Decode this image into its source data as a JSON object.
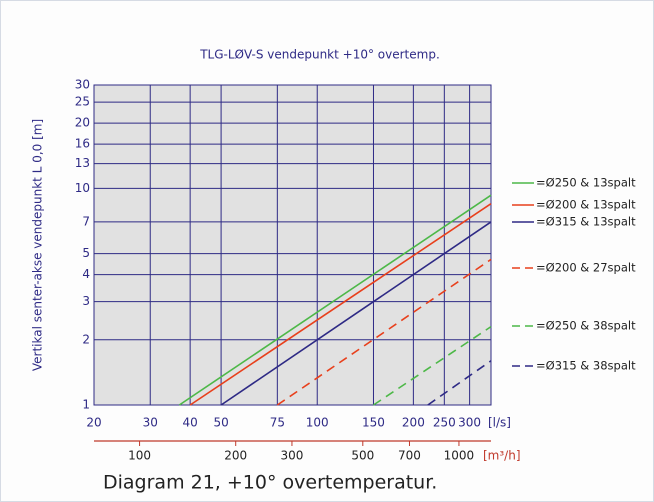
{
  "chart_data": {
    "type": "line",
    "title": "TLG-LØV-S vendepunkt +10° overtemp.",
    "y_label": "Vertikal senter-akse vendepunkt L 0,0 [m]",
    "x_unit": "[l/s]",
    "x2_unit": "[m³/h]",
    "caption": "Diagram 21, +10° overtemperatur.",
    "log_x": true,
    "log_y": true,
    "grid": true,
    "xlim": [
      20,
      350
    ],
    "xticks": [
      20,
      30,
      40,
      50,
      75,
      100,
      150,
      200,
      250,
      300
    ],
    "x2lim": [
      72,
      1260
    ],
    "x2ticks": [
      100,
      200,
      300,
      500,
      700,
      1000
    ],
    "ylim": [
      1,
      30
    ],
    "yticks": [
      1,
      2,
      3,
      4,
      5,
      7,
      10,
      13,
      16,
      20,
      25,
      30
    ],
    "series": [
      {
        "name": "=Ø250 & 13spalt",
        "color": "#4db848",
        "dashed": false,
        "x": [
          37,
          350
        ],
        "values": [
          1,
          9.3
        ]
      },
      {
        "name": "=Ø200 & 13spalt",
        "color": "#e8401c",
        "dashed": false,
        "x": [
          40,
          350
        ],
        "values": [
          1,
          8.5
        ]
      },
      {
        "name": "=Ø315 & 13spalt",
        "color": "#2e2a85",
        "dashed": false,
        "x": [
          50,
          350
        ],
        "values": [
          1,
          7
        ]
      },
      {
        "name": "=Ø200 & 27spalt",
        "color": "#e8401c",
        "dashed": true,
        "x": [
          75,
          350
        ],
        "values": [
          1,
          4.7
        ]
      },
      {
        "name": "=Ø250 & 38spalt",
        "color": "#4db848",
        "dashed": true,
        "x": [
          150,
          350
        ],
        "values": [
          1,
          2.3
        ]
      },
      {
        "name": "=Ø315 & 38spalt",
        "color": "#2e2a85",
        "dashed": true,
        "x": [
          222,
          350
        ],
        "values": [
          1,
          1.6
        ]
      }
    ]
  }
}
